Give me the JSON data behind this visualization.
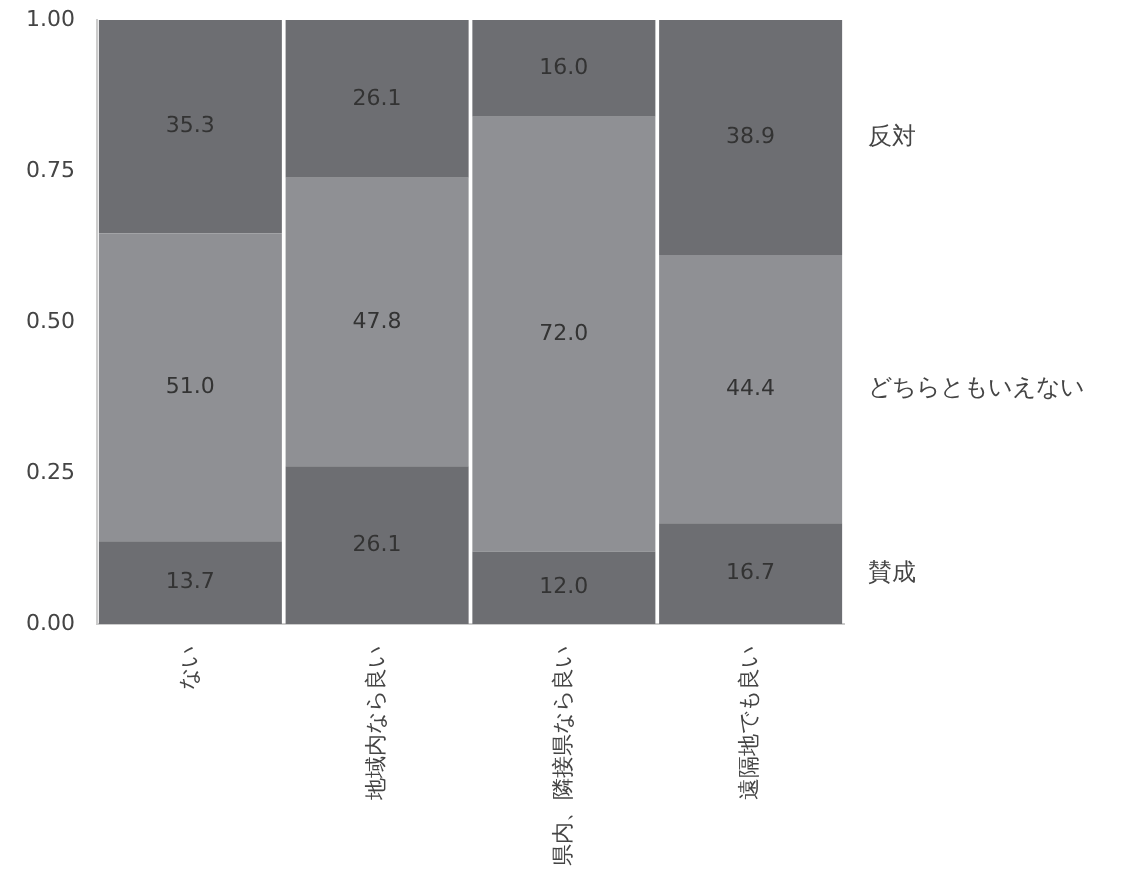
{
  "chart_data": {
    "type": "bar",
    "stacked": true,
    "categories": [
      "ない",
      "地域内なら良い",
      "県内、隣接県なら良い",
      "遠隔地でも良い"
    ],
    "series": [
      {
        "name": "賛成",
        "color": "#6d6e72",
        "values": [
          0.137,
          0.261,
          0.12,
          0.167
        ]
      },
      {
        "name": "どちらともいえない",
        "color": "#8f9094",
        "values": [
          0.51,
          0.478,
          0.72,
          0.444
        ]
      },
      {
        "name": "反対",
        "color": "#6d6e72",
        "values": [
          0.353,
          0.261,
          0.16,
          0.389
        ]
      }
    ],
    "annotations": [
      "13.7",
      "51.0",
      "35.3",
      "26.1",
      "47.8",
      "26.1",
      "12.0",
      "72.0",
      "16.0",
      "16.7",
      "44.4",
      "38.9"
    ],
    "ylim": [
      0,
      1
    ],
    "yticks": [
      {
        "value": 0,
        "label": "0.00"
      },
      {
        "value": 0.25,
        "label": "0.25"
      },
      {
        "value": 0.5,
        "label": "0.50"
      },
      {
        "value": 0.75,
        "label": "0.75"
      },
      {
        "value": 1,
        "label": "1.00"
      }
    ],
    "grid": false,
    "legend": false
  }
}
